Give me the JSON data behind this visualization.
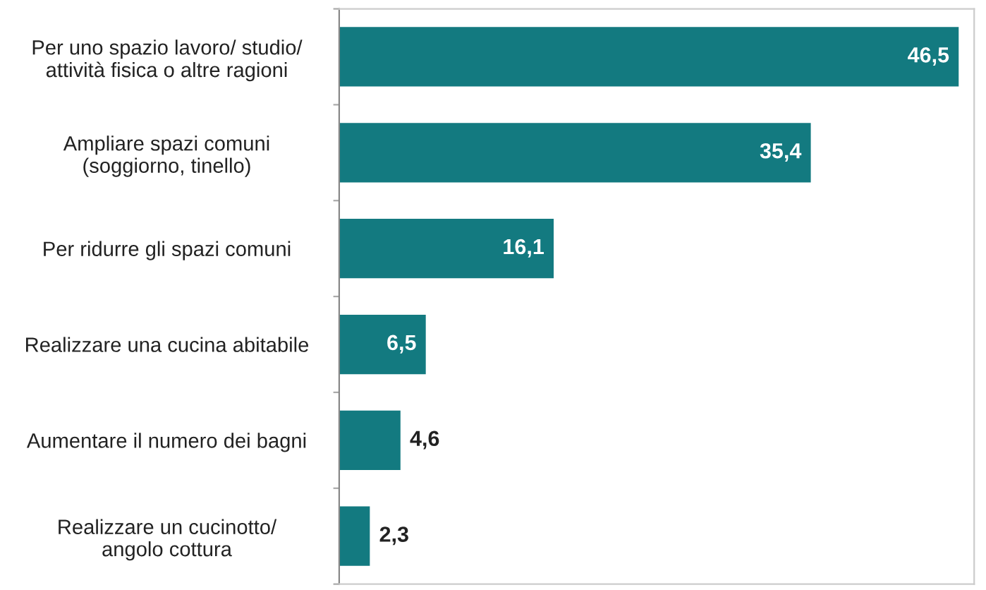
{
  "chart_data": {
    "type": "bar",
    "orientation": "horizontal",
    "categories": [
      "Per uno spazio lavoro/ studio/\nattività fisica o altre ragioni",
      "Ampliare spazi comuni\n(soggiorno, tinello)",
      "Per ridurre gli spazi comuni",
      "Realizzare una cucina abitabile",
      "Aumentare il numero dei bagni",
      "Realizzare un cucinotto/\nangolo cottura"
    ],
    "values": [
      46.5,
      35.4,
      16.1,
      6.5,
      4.6,
      2.3
    ],
    "value_labels": [
      "46,5",
      "35,4",
      "16,1",
      "6,5",
      "4,6",
      "2,3"
    ],
    "color": "#137a80"
  }
}
